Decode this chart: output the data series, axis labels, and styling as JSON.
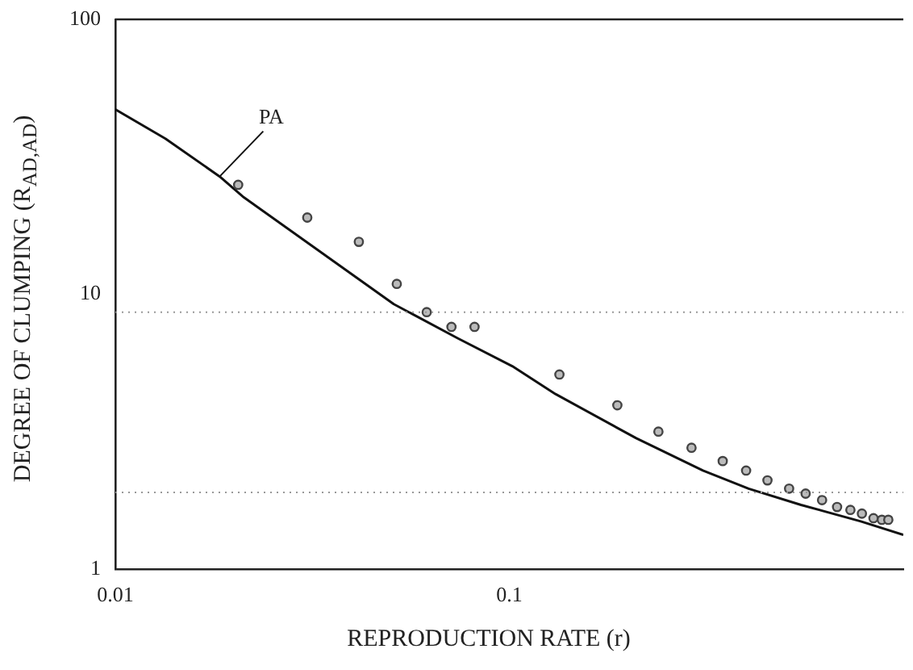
{
  "chart_data": {
    "type": "scatter",
    "xlabel": "REPRODUCTION RATE (r)",
    "ylabel": "DEGREE OF CLUMPING (R$_{AD,AD}$)",
    "log": "xy",
    "xlim": [
      0.01,
      1
    ],
    "ylim": [
      1,
      100
    ],
    "xticks": [
      0.01,
      0.1
    ],
    "yticks": [
      1,
      10,
      100
    ],
    "grid": false,
    "legend": false,
    "marker": "circle",
    "ref_lines": [
      {
        "axis": "y",
        "value": 8.6,
        "color": "#999999",
        "line_style": "dotted"
      },
      {
        "axis": "y",
        "value": 1.9,
        "color": "#999999",
        "line_style": "dotted"
      }
    ],
    "series": [
      {
        "color": "#444444",
        "x": [
          0.0205,
          0.0307,
          0.0415,
          0.0518,
          0.0617,
          0.0713,
          0.0816,
          0.134,
          0.188,
          0.239,
          0.29,
          0.348,
          0.399,
          0.452,
          0.513,
          0.565,
          0.622,
          0.679,
          0.734,
          0.785,
          0.84,
          0.882,
          0.916
        ],
        "values": [
          25,
          19,
          15.5,
          10.9,
          8.6,
          7.6,
          7.6,
          5.1,
          3.94,
          3.16,
          2.76,
          2.47,
          2.28,
          2.1,
          1.96,
          1.88,
          1.78,
          1.68,
          1.64,
          1.59,
          1.53,
          1.51,
          1.51
        ]
      },
      {
        "type": "line",
        "name": "PA",
        "color": "#111111",
        "line_style": "solid",
        "marker": "none",
        "x": [
          0.01,
          0.0134,
          0.0184,
          0.0212,
          0.0509,
          0.0741,
          0.1017,
          0.131,
          0.21,
          0.31,
          0.405,
          0.55,
          0.78,
          1.0
        ],
        "values": [
          47,
          36.8,
          26.8,
          22.5,
          9.2,
          6.9,
          5.47,
          4.33,
          2.99,
          2.28,
          1.96,
          1.71,
          1.49,
          1.33
        ]
      }
    ]
  }
}
